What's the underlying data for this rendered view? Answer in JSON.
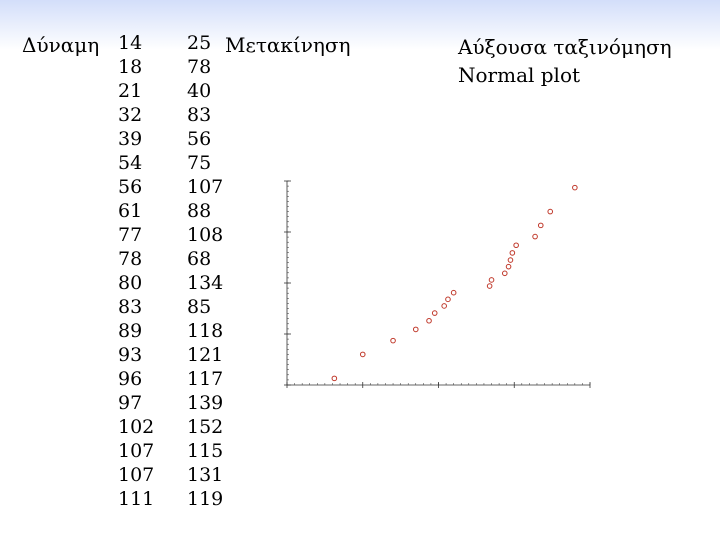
{
  "slide": {
    "power_label": "Δύναμη",
    "power_values": [
      "14",
      "18",
      "21",
      "32",
      "39",
      "54",
      "56",
      "61",
      "77",
      "78",
      "80",
      "83",
      "89",
      "93",
      "96",
      "97",
      "102",
      "107",
      "107",
      "111"
    ],
    "motion_first_value": "25",
    "motion_label": "Μετακίνηση",
    "motion_values_rest": [
      "78",
      "40",
      "83",
      "56",
      "75",
      "107",
      "88",
      "108",
      "68",
      "134",
      "85",
      "118",
      "121",
      "117",
      "139",
      "152",
      "115",
      "131",
      "119"
    ],
    "sort_title": "Αύξουσα ταξινόμηση",
    "plot_title": "Normal plot"
  },
  "chart_data": {
    "type": "scatter",
    "title": "",
    "xlim": [
      0,
      160
    ],
    "ylim": [
      -2,
      2
    ],
    "x": [
      25,
      40,
      56,
      68,
      75,
      78,
      83,
      85,
      88,
      107,
      108,
      115,
      117,
      118,
      119,
      121,
      131,
      134,
      139,
      152
    ],
    "y": [
      -1.87,
      -1.4,
      -1.13,
      -0.91,
      -0.74,
      -0.59,
      -0.45,
      -0.32,
      -0.19,
      -0.06,
      0.06,
      0.19,
      0.32,
      0.45,
      0.59,
      0.74,
      0.91,
      1.13,
      1.4,
      1.87
    ],
    "point_color": "#c0392b",
    "axis_color": "#333333"
  }
}
